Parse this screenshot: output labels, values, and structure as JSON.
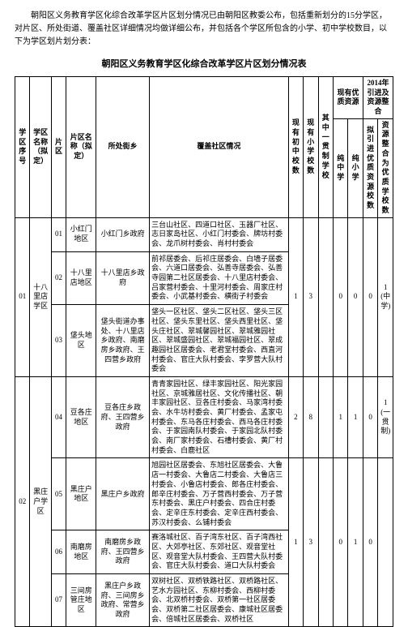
{
  "intro": "朝阳区义务教育学区化综合改革学区片区划分情况已由朝阳区教委公布，包括重新划分的15分学区，对片区、所处街道、覆盖社区详细情况均做详细公布，并包括各个学区所包含的小学、初中学校数目，以下为学区划片划分表：",
  "title": "朝阳区义务教育学区化综合改革学区片区划分情况表",
  "headers": {
    "idx": "学区序号",
    "zone": "学区名称（拟定）",
    "pidx": "片区",
    "pname": "片区名称（拟定）",
    "gov": "所处街乡",
    "desc": "覆盖社区情况",
    "midNow": "现有初中校数",
    "priNow": "现有小学校数",
    "thru": "其中一贯制学校",
    "qGroup": "现有优质资源",
    "qMid": "纯中学",
    "qPri": "纯小学",
    "planGroup": "2014年引进及资源整合",
    "planIn": "拟引进优质资源校数",
    "planMerge": "资源整合为优质学校数"
  },
  "zones": [
    {
      "idx": "01",
      "zone": "十八里店学区",
      "midNow": "1",
      "priNow": "3",
      "thru": "",
      "qMid": "0",
      "qPri": "0",
      "planIn": "0",
      "planMerge": "1(中学)",
      "pieces": [
        {
          "pidx": "01",
          "pname": "小红门地区",
          "gov": "小红门乡政府",
          "desc": "三台山社区、四道口社区、玉器厂社区、志日家岛社区、小红门村委会、牌坊村委会、龙爪树村委会、肖村村委会"
        },
        {
          "pidx": "02",
          "pname": "十八里店地区",
          "gov": "十八里店乡政府",
          "desc": "前祁居委会、后祁庄居委会、白墙子居委会、六道口居委会、弘善寺居委会、弘善寺园第二社区居委会、十八里店村委会、吕家营村委会、十里河村委会、周家庄村委会、小武基村委会、横街子村委会"
        },
        {
          "pidx": "03",
          "pname": "垡头地区",
          "gov": "垡头街道办事处、十八里店乡政府、南磨房乡政府、王四营乡政府",
          "desc": "垡头一区社区、垡头二区社区、垡头三区社区、垡头东里社区、垡头西里社区、垡头庄社区、翠城馨园社区、翠城雅园社区、翠城盛园社区、翠城福园社区、翠成趣园社区居委会、老君堂村委会、西直河村委会、官庄大队村委会、孛罗营大队村委会"
        }
      ]
    },
    {
      "idx": "02",
      "zone": "黑庄户学区",
      "midNow": "2",
      "priNow": "8",
      "thru": "",
      "qMid": "1",
      "qPri": "1",
      "planIn": "0",
      "planMerge": "1(一贯制)",
      "pieces": [
        {
          "pidx": "04",
          "pname": "豆各庄地区",
          "gov": "豆各庄乡政府、王四营乡政府",
          "desc": "青青家园社区、绿丰家园社区、阳光家园社区、京城雅居社区、文化传播社区、朝丰家园社区、豆各庄村委会、马家湾村委会、水牛坊村委会、黄厂村委会、孟家屯村委会、东马各庄村委会、西马各庄村委会、于家园南队村委会、于家园北队村委会、南厂家村委会、石槽村委会、黄厂村村委会、白鹿社区"
        },
        {
          "pidx": "05",
          "pname": "黑庄户地区",
          "gov": "黑庄户乡政府",
          "desc": "旭园社区居委会、东旭社区居委会、大鲁店一村委会、大鲁店二村委会、大鲁店三村委会、小鲁店村委会、郎各庄村委会、郎辛庄村委会、万子营西村委会、万子营东村委会、黑庄户村委会、四合庄村委会、定辛庄东村委会、定辛庄西村委会、苏汉村委会、么铺村委会",
          "r": {
            "midNow": "1",
            "priNow": "3",
            "thru": "",
            "qMid": "0",
            "qPri": "1",
            "planIn": "0",
            "planMerge": ""
          }
        },
        {
          "pidx": "06",
          "pname": "南磨房地区",
          "gov": "南磨房乡政府、王四营乡政府",
          "desc": "赛洛城社区、百子湾东社区、百子湾西社区、大郊亭社区、东郊社区、观音堂社区、观音堂大队村委会、王四营大队村委会、官庄大队村委会、道口大队村委会"
        },
        {
          "pidx": "07",
          "pname": "三间房管庄地区",
          "gov": "黑庄户乡政府、三间房乡政府、常营乡政府",
          "desc": "双树社区、双桥铁路社区、双桥路社区、艺水方园社区、东柳村委会、西柳村委会、北双桥村委会、双桥第一社区居委会、双桥第二社区居委会、康城社区居委会、倍城社区居委会、双桥社区"
        }
      ]
    }
  ]
}
